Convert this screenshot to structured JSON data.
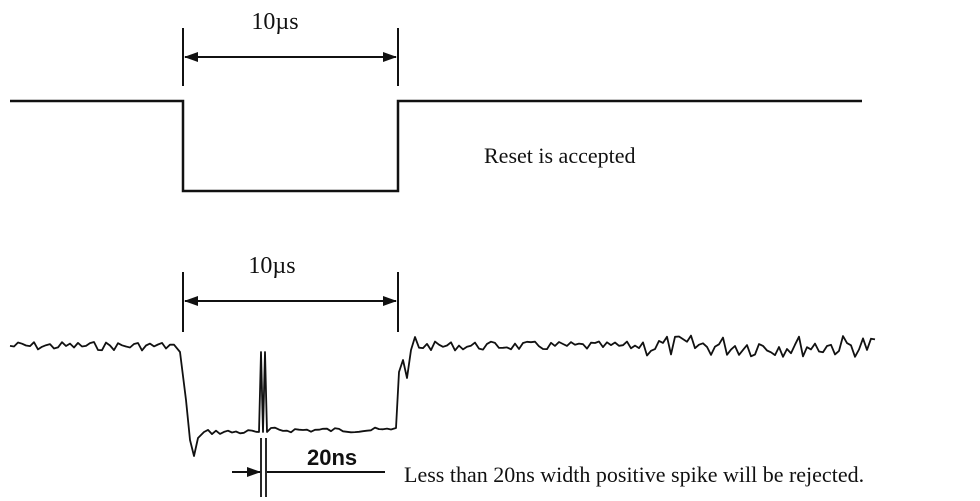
{
  "top_diagram": {
    "width_label": "10µs",
    "caption": "Reset is accepted"
  },
  "bottom_diagram": {
    "width_label": "10µs",
    "spike_width_label": "20ns",
    "caption": "Less than 20ns width positive spike will be rejected."
  },
  "colors": {
    "background": "#ffffff",
    "line": "#111111"
  }
}
